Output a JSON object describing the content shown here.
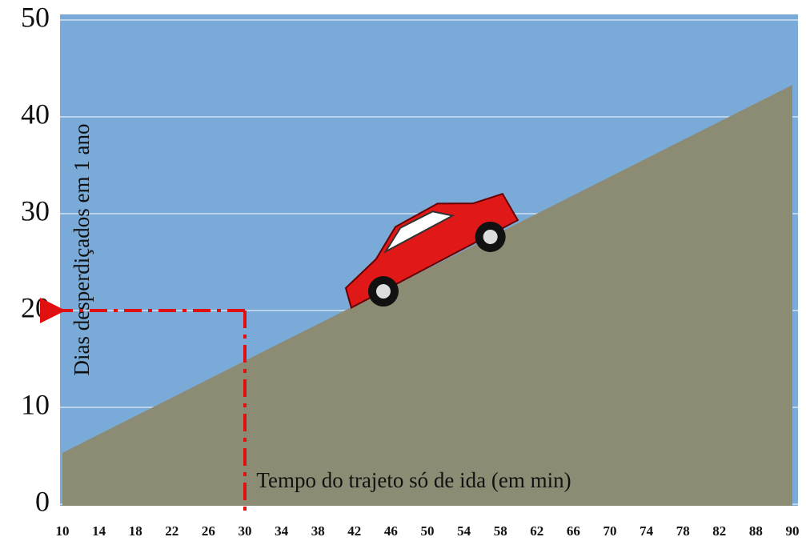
{
  "chart_data": {
    "type": "area",
    "ylabel": "Dias desperdiçados em 1 ano",
    "xlabel": "Tempo do trajeto só de ida (em min)",
    "categories": [
      10,
      14,
      18,
      22,
      26,
      30,
      34,
      38,
      42,
      46,
      50,
      54,
      58,
      62,
      66,
      70,
      74,
      78,
      82,
      88,
      90
    ],
    "values": [
      5.3,
      7.2,
      9.1,
      11.0,
      12.9,
      14.8,
      16.7,
      18.6,
      20.5,
      22.4,
      24.3,
      26.2,
      28.1,
      30.0,
      31.9,
      33.8,
      35.7,
      37.6,
      39.5,
      41.4,
      43.3
    ],
    "color": "#8c8c74",
    "background": "#7aaad8",
    "ylim": [
      0,
      50
    ],
    "yticks": [
      0,
      10,
      20,
      30,
      40,
      50
    ],
    "grid": true,
    "reference": {
      "x": 30,
      "y": 20,
      "color": "#e01010"
    }
  }
}
